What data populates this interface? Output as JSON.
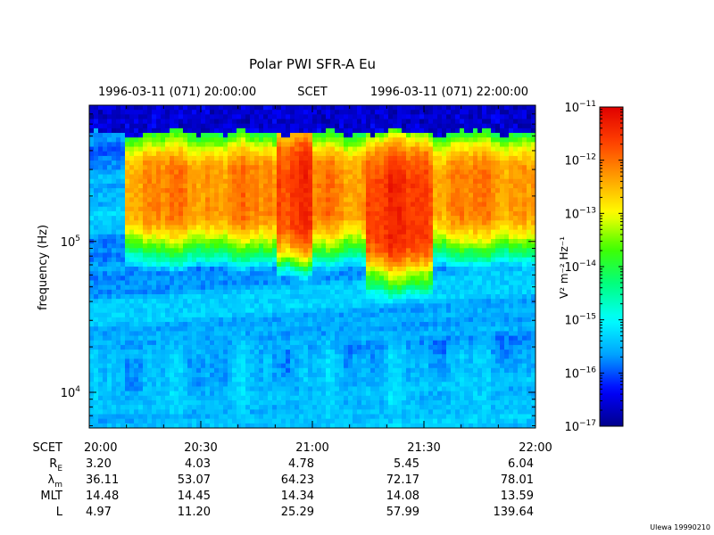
{
  "chart_data": {
    "type": "heatmap",
    "title": "Polar PWI SFR-A Eu",
    "subtitle_left": "1996-03-11 (071) 20:00:00",
    "subtitle_center": "SCET",
    "subtitle_right": "1996-03-11 (071) 22:00:00",
    "ylabel": "frequency (Hz)",
    "y_scale": "log",
    "ylim": [
      5800,
      800000
    ],
    "y_ticks": [
      {
        "value": 10000,
        "base": "10",
        "exp": "4"
      },
      {
        "value": 100000,
        "base": "10",
        "exp": "5"
      }
    ],
    "xlim_minutes": [
      0,
      120
    ],
    "x_ticks": [
      "20:00",
      "20:30",
      "21:00",
      "21:30",
      "22:00"
    ],
    "ephemeris": {
      "labels": [
        "SCET",
        "R_E",
        "λ_m",
        "MLT",
        "L"
      ],
      "rows": [
        {
          "label": "SCET",
          "sub": "",
          "values": [
            "20:00",
            "20:30",
            "21:00",
            "21:30",
            "22:00"
          ]
        },
        {
          "label": "R",
          "sub": "E",
          "values": [
            "3.20",
            "4.03",
            "4.78",
            "5.45",
            "6.04"
          ]
        },
        {
          "label": "λ",
          "sub": "m",
          "values": [
            "36.11",
            "53.07",
            "64.23",
            "72.17",
            "78.01"
          ]
        },
        {
          "label": "MLT",
          "sub": "",
          "values": [
            "14.48",
            "14.45",
            "14.34",
            "14.08",
            "13.59"
          ]
        },
        {
          "label": "L",
          "sub": "",
          "values": [
            "4.97",
            "11.20",
            "25.29",
            "57.99",
            "139.64"
          ]
        }
      ]
    },
    "colorbar": {
      "label": "V² m⁻² Hz⁻¹",
      "scale": "log",
      "range": [
        1e-17,
        1e-11
      ],
      "ticks": [
        {
          "value": -11,
          "base": "10",
          "exp": "−11"
        },
        {
          "value": -12,
          "base": "10",
          "exp": "−12"
        },
        {
          "value": -13,
          "base": "10",
          "exp": "−13"
        },
        {
          "value": -14,
          "base": "10",
          "exp": "−14"
        },
        {
          "value": -15,
          "base": "10",
          "exp": "−15"
        },
        {
          "value": -16,
          "base": "10",
          "exp": "−16"
        },
        {
          "value": -17,
          "base": "10",
          "exp": "−17"
        }
      ],
      "colors": [
        "#00008b",
        "#0000ff",
        "#00a0ff",
        "#00ffff",
        "#00ff80",
        "#40ff00",
        "#ffff00",
        "#ffa000",
        "#ff4000",
        "#e00000"
      ]
    },
    "features": [
      {
        "name": "broadband emission",
        "t_start_min": 10,
        "t_end_min": 120,
        "f_low_hz": 90000,
        "f_high_hz": 500000,
        "log_intensity": -12.2
      },
      {
        "name": "intense burst",
        "t_start_min": 50,
        "t_end_min": 60,
        "f_low_hz": 80000,
        "f_high_hz": 550000,
        "log_intensity": -11.5
      },
      {
        "name": "intense burst",
        "t_start_min": 74,
        "t_end_min": 92,
        "f_low_hz": 60000,
        "f_high_hz": 400000,
        "log_intensity": -11.6
      },
      {
        "name": "low-frequency band",
        "t_start_min": 0,
        "t_end_min": 120,
        "f_low_hz": 5800,
        "f_high_hz": 25000,
        "log_intensity": -15.5
      }
    ],
    "grid": false
  },
  "footer": {
    "credit": "Ulewa 19990210"
  }
}
